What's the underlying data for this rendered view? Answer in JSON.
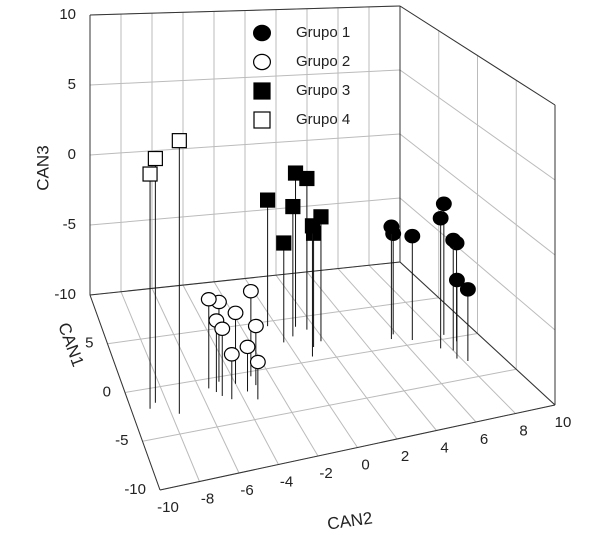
{
  "chart_data": {
    "type": "scatter3d",
    "xlabel": "CAN2",
    "ylabel": "CAN1",
    "zlabel": "CAN3",
    "xlim": [
      -10,
      10
    ],
    "ylim": [
      -10,
      10
    ],
    "zlim": [
      -10,
      10
    ],
    "xticks": [
      -10,
      -8,
      -6,
      -4,
      -2,
      0,
      2,
      4,
      6,
      8,
      10
    ],
    "yticks": [
      -10,
      -5,
      0,
      5
    ],
    "zticks": [
      -10,
      -5,
      0,
      5,
      10
    ],
    "grid": true,
    "legend": "top",
    "series": [
      {
        "name": "Grupo 1",
        "marker": "circle",
        "color": "#000000",
        "x": [
          5.5,
          5.8,
          6.5,
          7.5,
          7.8,
          8.0,
          8.3,
          8.6,
          8.2
        ],
        "y": [
          1.0,
          1.5,
          0.5,
          -1.0,
          -2.5,
          -1.5,
          0.5,
          -0.5,
          -3.0
        ],
        "z": [
          -2.0,
          -2.8,
          -2.6,
          -0.8,
          -4.5,
          -2.2,
          -0.6,
          -3.0,
          -5.0
        ]
      },
      {
        "name": "Grupo 2",
        "marker": "circle",
        "color": "#ffffff",
        "x": [
          -5.5,
          -5.2,
          -5.0,
          -4.6,
          -4.8,
          -4.0,
          -3.6,
          -3.0,
          -3.0,
          -3.3
        ],
        "y": [
          -1.0,
          -1.5,
          -2.0,
          -2.5,
          -0.5,
          -1.0,
          -2.0,
          -1.5,
          -0.5,
          -3.0
        ],
        "z": [
          -4.0,
          -5.2,
          -5.5,
          -7.0,
          -4.6,
          -5.2,
          -7.0,
          -6.0,
          -4.2,
          -7.5
        ]
      },
      {
        "name": "Grupo 3",
        "marker": "square",
        "color": "#000000",
        "x": [
          -0.5,
          -0.2,
          0.5,
          1.0,
          1.5,
          1.2,
          1.8,
          0.8
        ],
        "y": [
          4.5,
          2.5,
          3.0,
          4.0,
          3.5,
          1.5,
          2.0,
          0.5
        ],
        "z": [
          -1.0,
          -3.0,
          -0.8,
          1.0,
          0.8,
          -2.0,
          -1.2,
          -0.9
        ]
      },
      {
        "name": "Grupo 4",
        "marker": "square",
        "color": "#ffffff",
        "x": [
          -9.0,
          -8.6,
          -7.6
        ],
        "y": [
          -2.0,
          -1.5,
          -3.0
        ],
        "z": [
          5.5,
          6.2,
          8.0
        ]
      }
    ]
  }
}
